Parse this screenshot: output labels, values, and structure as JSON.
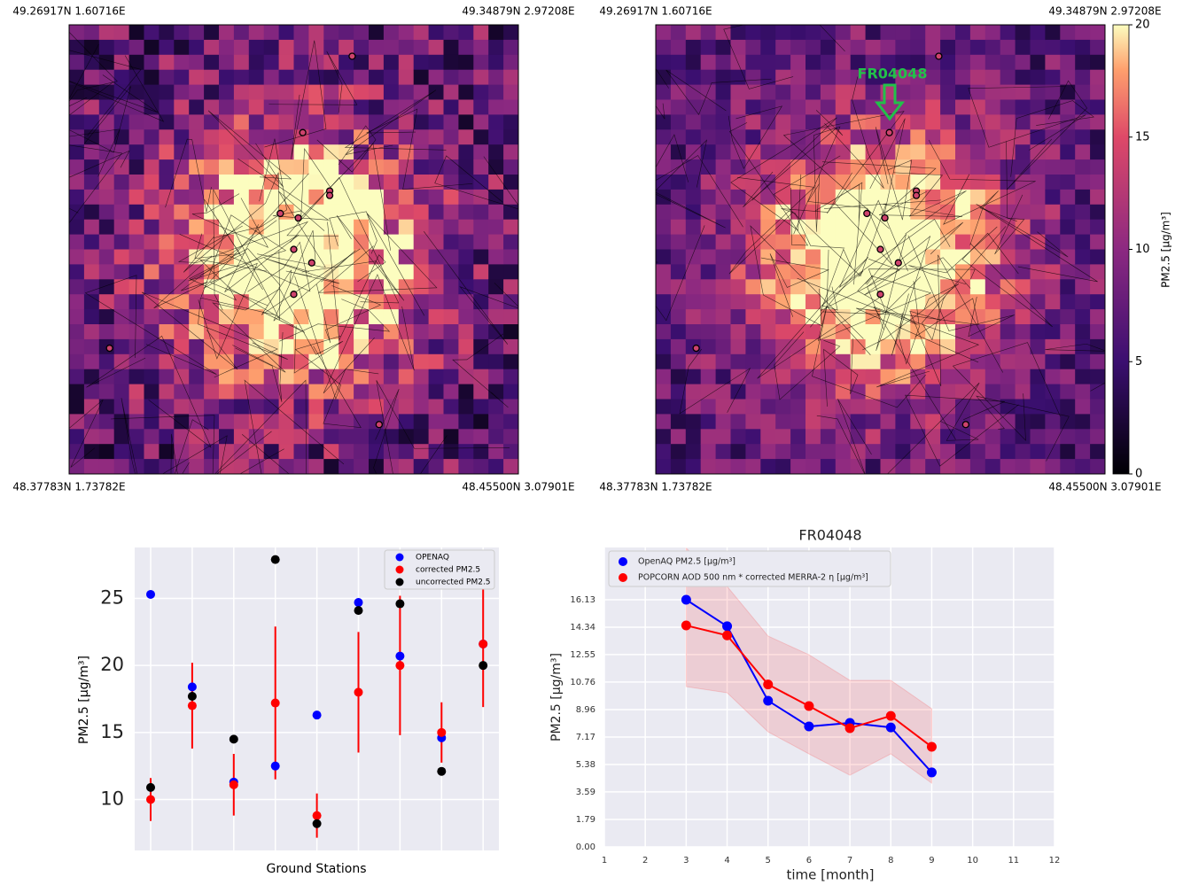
{
  "chart_data": [
    {
      "type": "map",
      "corner_labels": [
        "49.26917N 1.60716E",
        "49.34879N 2.97208E",
        "48.37783N 1.73782E",
        "48.45500N 3.07901E"
      ]
    },
    {
      "type": "map",
      "corner_labels": [
        "49.26917N 1.60716E",
        "49.34879N 2.97208E",
        "48.37783N 1.73782E",
        "48.45500N 3.07901E"
      ],
      "annotation": "FR04048",
      "colorbar_label": "PM2.5 [μg/m³]",
      "colorbar_lim": [
        0,
        20
      ],
      "colorbar_ticks": [
        0,
        5,
        10,
        15,
        20
      ],
      "colormap": "magma"
    },
    {
      "type": "errorbar",
      "xlabel": "Ground Stations",
      "ylabel": "PM2.5 [μg/m³]",
      "categories": [
        null,
        null,
        null,
        null,
        null,
        null,
        null,
        null,
        null
      ],
      "ylim": [
        6.2,
        28.8
      ],
      "yticks": [
        10,
        15,
        20,
        25
      ],
      "grid": true,
      "legend": "upper right",
      "series": [
        {
          "name": "OPENAQ",
          "color": "#0000ff",
          "values": [
            25.3,
            18.4,
            11.3,
            12.5,
            16.3,
            24.7,
            20.7,
            14.6,
            21.6
          ]
        },
        {
          "name": "corrected PM2.5",
          "color": "#ff0000",
          "values": [
            10.0,
            17.0,
            11.1,
            17.2,
            8.8,
            18.0,
            20.0,
            15.0,
            21.6
          ],
          "errors": [
            1.6,
            3.2,
            2.3,
            5.7,
            1.65,
            4.5,
            5.2,
            2.25,
            4.7
          ]
        },
        {
          "name": "uncorrected PM2.5",
          "color": "#000000",
          "values": [
            10.9,
            17.7,
            14.5,
            27.9,
            8.2,
            24.1,
            24.6,
            12.1,
            20.0
          ]
        }
      ]
    },
    {
      "type": "line",
      "title": "FR04048",
      "xlabel": "time [month]",
      "ylabel": "PM2.5 [μg/m³]",
      "x": [
        3,
        4,
        5,
        6,
        7,
        8,
        9
      ],
      "xlim": [
        1,
        12
      ],
      "xticks": [
        1,
        2,
        3,
        4,
        5,
        6,
        7,
        8,
        9,
        10,
        11,
        12
      ],
      "ylim": [
        0,
        19.54
      ],
      "yticks": [
        {
          "value": 0,
          "label": "0.00"
        },
        1.79,
        3.59,
        5.38,
        7.17,
        8.96,
        10.76,
        12.55,
        14.34,
        16.13
      ],
      "grid": true,
      "legend": "upper left",
      "series": [
        {
          "name": "OpenAQ PM2.5 [μg/m³]",
          "color": "#0000ff",
          "values": [
            16.13,
            14.4,
            9.54,
            7.86,
            8.09,
            7.8,
            4.86
          ]
        },
        {
          "name": "POPCORN AOD 500 nm * corrected MERRA-2 η [μg/m³]",
          "color": "#ff0000",
          "values": [
            14.45,
            13.8,
            10.6,
            9.19,
            7.75,
            8.55,
            6.53
          ],
          "lower": [
            10.46,
            10.06,
            7.51,
            6.07,
            4.68,
            6.07,
            4.16
          ],
          "upper": [
            19.5,
            17.0,
            13.76,
            12.54,
            10.87,
            10.87,
            9.02
          ]
        }
      ]
    }
  ]
}
